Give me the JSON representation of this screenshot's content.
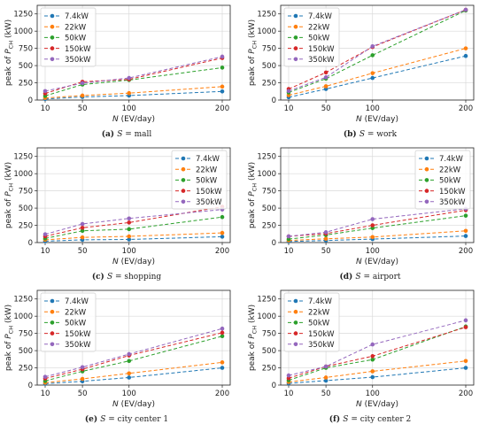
{
  "chart_data": [
    {
      "type": "line",
      "caption_letter": "(a)",
      "caption_text": "S = mall",
      "xlabel": "N (EV/day)",
      "ylabel": "peak of P_CH (kW)",
      "x": [
        10,
        50,
        100,
        200
      ],
      "x_ticks": [
        "10",
        "50",
        "100",
        "200"
      ],
      "y_ticks": [
        "0",
        "250",
        "500",
        "750",
        "1000",
        "1250"
      ],
      "ylim": [
        0,
        1375
      ],
      "grid": true,
      "legend_position": "top-left",
      "series": [
        {
          "name": "7.4kW",
          "color": "#1f77b4",
          "values": [
            15,
            45,
            65,
            125
          ]
        },
        {
          "name": "22kW",
          "color": "#ff7f0e",
          "values": [
            30,
            65,
            100,
            195
          ]
        },
        {
          "name": "50kW",
          "color": "#2ca02c",
          "values": [
            60,
            225,
            290,
            470
          ]
        },
        {
          "name": "150kW",
          "color": "#d62728",
          "values": [
            95,
            265,
            300,
            610
          ]
        },
        {
          "name": "350kW",
          "color": "#9467bd",
          "values": [
            130,
            245,
            320,
            630
          ]
        }
      ]
    },
    {
      "type": "line",
      "caption_letter": "(b)",
      "caption_text": "S = work",
      "xlabel": "N (EV/day)",
      "ylabel": "peak of P_CH (kW)",
      "x": [
        10,
        50,
        100,
        200
      ],
      "x_ticks": [
        "10",
        "50",
        "100",
        "200"
      ],
      "y_ticks": [
        "0",
        "250",
        "500",
        "750",
        "1000",
        "1250"
      ],
      "ylim": [
        0,
        1375
      ],
      "grid": true,
      "legend_position": "top-left",
      "series": [
        {
          "name": "7.4kW",
          "color": "#1f77b4",
          "values": [
            40,
            160,
            320,
            640
          ]
        },
        {
          "name": "22kW",
          "color": "#ff7f0e",
          "values": [
            70,
            200,
            390,
            750
          ]
        },
        {
          "name": "50kW",
          "color": "#2ca02c",
          "values": [
            110,
            310,
            650,
            1300
          ]
        },
        {
          "name": "150kW",
          "color": "#d62728",
          "values": [
            160,
            400,
            770,
            1310
          ]
        },
        {
          "name": "350kW",
          "color": "#9467bd",
          "values": [
            130,
            330,
            780,
            1310
          ]
        }
      ]
    },
    {
      "type": "line",
      "caption_letter": "(c)",
      "caption_text": "S = shopping",
      "xlabel": "N (EV/day)",
      "ylabel": "peak of P_CH (kW)",
      "x": [
        10,
        50,
        100,
        200
      ],
      "x_ticks": [
        "10",
        "50",
        "100",
        "200"
      ],
      "y_ticks": [
        "0",
        "250",
        "500",
        "750",
        "1000",
        "1250"
      ],
      "ylim": [
        0,
        1375
      ],
      "grid": true,
      "legend_position": "top-right",
      "series": [
        {
          "name": "7.4kW",
          "color": "#1f77b4",
          "values": [
            20,
            40,
            45,
            85
          ]
        },
        {
          "name": "22kW",
          "color": "#ff7f0e",
          "values": [
            40,
            75,
            90,
            140
          ]
        },
        {
          "name": "50kW",
          "color": "#2ca02c",
          "values": [
            60,
            170,
            195,
            370
          ]
        },
        {
          "name": "150kW",
          "color": "#d62728",
          "values": [
            90,
            215,
            290,
            520
          ]
        },
        {
          "name": "350kW",
          "color": "#9467bd",
          "values": [
            120,
            270,
            350,
            480
          ]
        }
      ]
    },
    {
      "type": "line",
      "caption_letter": "(d)",
      "caption_text": "S = airport",
      "xlabel": "N (EV/day)",
      "ylabel": "peak of P_CH (kW)",
      "x": [
        10,
        50,
        100,
        200
      ],
      "x_ticks": [
        "10",
        "50",
        "100",
        "200"
      ],
      "y_ticks": [
        "0",
        "250",
        "500",
        "750",
        "1000",
        "1250"
      ],
      "ylim": [
        0,
        1375
      ],
      "grid": true,
      "legend_position": "top-right",
      "series": [
        {
          "name": "7.4kW",
          "color": "#1f77b4",
          "values": [
            15,
            30,
            50,
            95
          ]
        },
        {
          "name": "22kW",
          "color": "#ff7f0e",
          "values": [
            30,
            55,
            80,
            170
          ]
        },
        {
          "name": "50kW",
          "color": "#2ca02c",
          "values": [
            50,
            110,
            210,
            390
          ]
        },
        {
          "name": "150kW",
          "color": "#d62728",
          "values": [
            90,
            130,
            250,
            470
          ]
        },
        {
          "name": "350kW",
          "color": "#9467bd",
          "values": [
            90,
            150,
            340,
            490
          ]
        }
      ]
    },
    {
      "type": "line",
      "caption_letter": "(e)",
      "caption_text": "S = city center 1",
      "xlabel": "N (EV/day)",
      "ylabel": "peak of P_CH (kW)",
      "x": [
        10,
        50,
        100,
        200
      ],
      "x_ticks": [
        "10",
        "50",
        "100",
        "200"
      ],
      "y_ticks": [
        "0",
        "250",
        "500",
        "750",
        "1000",
        "1250"
      ],
      "ylim": [
        0,
        1375
      ],
      "grid": true,
      "legend_position": "top-left",
      "series": [
        {
          "name": "7.4kW",
          "color": "#1f77b4",
          "values": [
            20,
            55,
            110,
            250
          ]
        },
        {
          "name": "22kW",
          "color": "#ff7f0e",
          "values": [
            35,
            90,
            170,
            330
          ]
        },
        {
          "name": "50kW",
          "color": "#2ca02c",
          "values": [
            60,
            200,
            350,
            710
          ]
        },
        {
          "name": "150kW",
          "color": "#d62728",
          "values": [
            95,
            230,
            430,
            760
          ]
        },
        {
          "name": "350kW",
          "color": "#9467bd",
          "values": [
            120,
            260,
            450,
            820
          ]
        }
      ]
    },
    {
      "type": "line",
      "caption_letter": "(f)",
      "caption_text": "S = city center 2",
      "xlabel": "N (EV/day)",
      "ylabel": "peak of P_CH (kW)",
      "x": [
        10,
        50,
        100,
        200
      ],
      "x_ticks": [
        "10",
        "50",
        "100",
        "200"
      ],
      "y_ticks": [
        "0",
        "250",
        "500",
        "750",
        "1000",
        "1250"
      ],
      "ylim": [
        0,
        1375
      ],
      "grid": true,
      "legend_position": "top-left",
      "series": [
        {
          "name": "7.4kW",
          "color": "#1f77b4",
          "values": [
            25,
            65,
            115,
            250
          ]
        },
        {
          "name": "22kW",
          "color": "#ff7f0e",
          "values": [
            45,
            110,
            200,
            350
          ]
        },
        {
          "name": "50kW",
          "color": "#2ca02c",
          "values": [
            70,
            250,
            370,
            850
          ]
        },
        {
          "name": "150kW",
          "color": "#d62728",
          "values": [
            100,
            270,
            420,
            840
          ]
        },
        {
          "name": "350kW",
          "color": "#9467bd",
          "values": [
            140,
            270,
            590,
            940
          ]
        }
      ]
    }
  ]
}
